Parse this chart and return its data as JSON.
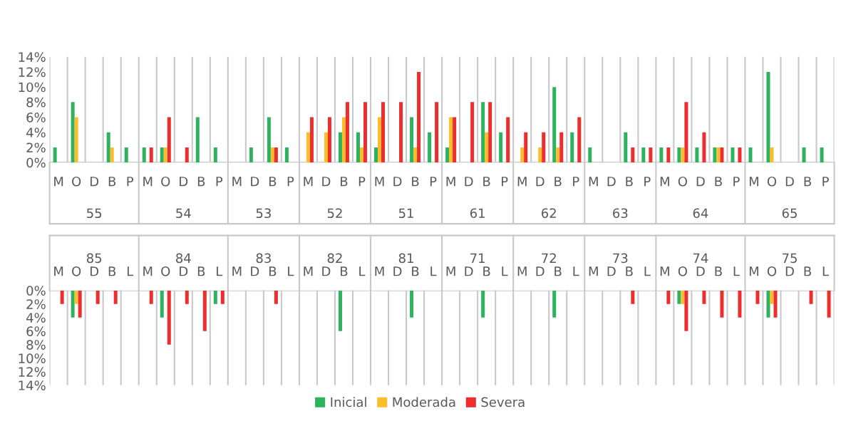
{
  "chart_data": [
    {
      "type": "bar",
      "categories": [
        "M",
        "O",
        "D",
        "B",
        "P",
        "M",
        "O",
        "D",
        "B",
        "P",
        "M",
        "D",
        "B",
        "P",
        "M",
        "D",
        "B",
        "P",
        "M",
        "D",
        "B",
        "P",
        "M",
        "D",
        "B",
        "P",
        "M",
        "D",
        "B",
        "P",
        "M",
        "D",
        "B",
        "P",
        "M",
        "O",
        "D",
        "B",
        "P",
        "M",
        "O",
        "D",
        "B",
        "P"
      ],
      "annotations": [
        "55",
        "54",
        "53",
        "52",
        "51",
        "61",
        "62",
        "63",
        "64",
        "65"
      ],
      "series": [
        {
          "color": "#2db35d",
          "values": [
            2,
            8,
            null,
            4,
            2,
            2,
            2,
            null,
            6,
            2,
            null,
            2,
            6,
            2,
            null,
            null,
            4,
            4,
            2,
            null,
            6,
            4,
            2,
            null,
            8,
            4,
            null,
            null,
            10,
            4,
            2,
            null,
            4,
            2,
            2,
            2,
            2,
            2,
            2,
            2,
            12,
            null,
            2,
            2
          ]
        },
        {
          "color": "#fbbd2b",
          "values": [
            null,
            6,
            null,
            2,
            null,
            null,
            2,
            null,
            null,
            null,
            null,
            null,
            2,
            null,
            4,
            4,
            6,
            2,
            6,
            null,
            2,
            null,
            6,
            null,
            4,
            null,
            2,
            2,
            2,
            null,
            null,
            null,
            null,
            null,
            null,
            2,
            null,
            2,
            null,
            null,
            2,
            null,
            null,
            null
          ]
        },
        {
          "color": "#ee2d2d",
          "values": [
            null,
            null,
            null,
            null,
            null,
            2,
            6,
            2,
            null,
            null,
            null,
            null,
            2,
            null,
            6,
            6,
            8,
            8,
            8,
            8,
            12,
            8,
            6,
            8,
            8,
            6,
            4,
            4,
            4,
            6,
            null,
            null,
            2,
            2,
            2,
            8,
            4,
            2,
            2,
            null,
            null,
            null,
            null,
            null
          ]
        }
      ],
      "ylim": [
        0,
        14
      ],
      "yticks": [
        {
          "value": 0,
          "label": "0%"
        },
        {
          "value": 2,
          "label": "2%"
        },
        {
          "value": 4,
          "label": "4%"
        },
        {
          "value": 6,
          "label": "6%"
        },
        {
          "value": 8,
          "label": "8%"
        },
        {
          "value": 10,
          "label": "10%"
        },
        {
          "value": 12,
          "label": "12%"
        },
        {
          "value": 14,
          "label": "14%"
        }
      ],
      "grid": "x"
    },
    {
      "type": "bar",
      "categories": [
        "M",
        "O",
        "D",
        "B",
        "L",
        "M",
        "O",
        "D",
        "B",
        "L",
        "M",
        "D",
        "B",
        "L",
        "M",
        "D",
        "B",
        "L",
        "M",
        "D",
        "B",
        "L",
        "M",
        "D",
        "B",
        "L",
        "M",
        "D",
        "B",
        "L",
        "M",
        "D",
        "B",
        "L",
        "M",
        "O",
        "D",
        "B",
        "L",
        "M",
        "O",
        "D",
        "B",
        "L"
      ],
      "annotations": [
        "85",
        "84",
        "83",
        "82",
        "81",
        "71",
        "72",
        "73",
        "74",
        "75"
      ],
      "series": [
        {
          "name": "Inicial",
          "color": "#2db35d",
          "values": [
            null,
            4,
            null,
            null,
            null,
            null,
            4,
            null,
            null,
            2,
            null,
            null,
            null,
            null,
            null,
            null,
            6,
            null,
            null,
            null,
            4,
            null,
            null,
            null,
            4,
            null,
            null,
            null,
            4,
            null,
            null,
            null,
            null,
            null,
            null,
            2,
            null,
            null,
            null,
            null,
            4,
            null,
            null,
            null
          ]
        },
        {
          "name": "Moderada",
          "color": "#fbbd2b",
          "values": [
            null,
            2,
            null,
            null,
            null,
            null,
            null,
            null,
            null,
            null,
            null,
            null,
            null,
            null,
            null,
            null,
            null,
            null,
            null,
            null,
            null,
            null,
            null,
            null,
            null,
            null,
            null,
            null,
            null,
            null,
            null,
            null,
            null,
            null,
            null,
            2,
            null,
            null,
            null,
            null,
            2,
            null,
            null,
            null
          ]
        },
        {
          "name": "Severa",
          "color": "#ee2d2d",
          "values": [
            2,
            4,
            2,
            2,
            null,
            2,
            8,
            2,
            6,
            2,
            null,
            null,
            2,
            null,
            null,
            null,
            null,
            null,
            null,
            null,
            null,
            null,
            null,
            null,
            null,
            null,
            null,
            null,
            null,
            null,
            null,
            null,
            2,
            null,
            2,
            6,
            2,
            4,
            4,
            2,
            4,
            null,
            2,
            4
          ]
        }
      ],
      "ylim": [
        14,
        0
      ],
      "yticks": [
        {
          "value": 0,
          "label": "0%"
        },
        {
          "value": 2,
          "label": "2%"
        },
        {
          "value": 4,
          "label": "4%"
        },
        {
          "value": 6,
          "label": "6%"
        },
        {
          "value": 8,
          "label": "8%"
        },
        {
          "value": 10,
          "label": "10%"
        },
        {
          "value": 12,
          "label": "12%"
        },
        {
          "value": 14,
          "label": "14%"
        }
      ],
      "grid": "x",
      "legend": "bottom"
    }
  ]
}
